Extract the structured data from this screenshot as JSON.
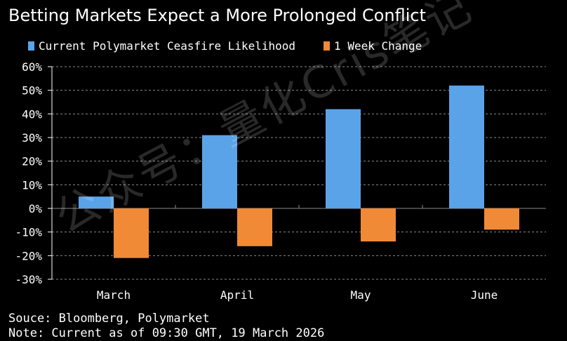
{
  "title": "Betting Markets Expect a More Prolonged Conflict",
  "colors": {
    "background": "#000000",
    "current": "#5ba3e8",
    "change": "#f08a36",
    "grid": "#8a8a8a",
    "text": "#ffffff"
  },
  "source_lines": {
    "line1": "Souce: Bloomberg, Polymarket",
    "line2": "Note: Current as of 09:30 GMT, 19 March 2026"
  },
  "watermark": "公众号：量化Cris笔记",
  "chart_data": {
    "type": "bar",
    "title": "Betting Markets Expect a More Prolonged Conflict",
    "xlabel": "",
    "ylabel": "",
    "ylim": [
      -30,
      60
    ],
    "yticks": [
      "60%",
      "50%",
      "40%",
      "30%",
      "20%",
      "10%",
      "0%",
      "-10%",
      "-20%",
      "-30%"
    ],
    "ytick_values": [
      60,
      50,
      40,
      30,
      20,
      10,
      0,
      -10,
      -20,
      -30
    ],
    "categories": [
      "March",
      "April",
      "May",
      "June"
    ],
    "series": [
      {
        "name": "Current Polymarket Ceasfire Likelihood",
        "values": [
          5,
          31,
          42,
          52
        ]
      },
      {
        "name": "1 Week Change",
        "values": [
          -21,
          -16,
          -14,
          -9
        ]
      }
    ],
    "grid": true,
    "legend_position": "top-left"
  }
}
